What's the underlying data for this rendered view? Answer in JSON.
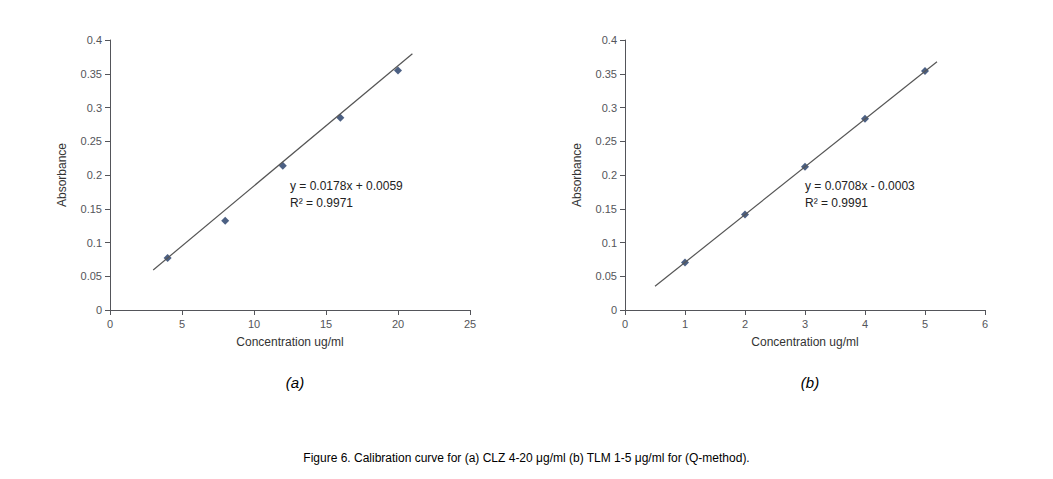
{
  "chart_data": [
    {
      "type": "scatter",
      "title": "(a)",
      "xlabel": "Concentration ug/ml",
      "ylabel": "Absorbance",
      "annotations": [
        "y = 0.0178x + 0.0059",
        "R² = 0.9971"
      ],
      "xlim": [
        0,
        25
      ],
      "xticks": [
        0,
        5,
        10,
        15,
        20,
        25
      ],
      "ylim": [
        0,
        0.4
      ],
      "yticks": [
        0,
        0.05,
        0.1,
        0.15,
        0.2,
        0.25,
        0.3,
        0.35,
        0.4
      ],
      "grid": false,
      "series": [
        {
          "type": "line",
          "color": "#555555",
          "x": [
            3,
            21
          ],
          "values": [
            0.0593,
            0.3797
          ]
        },
        {
          "type": "scatter",
          "color": "#1F3864",
          "marker": "diamond",
          "x": [
            4,
            8,
            12,
            16,
            20
          ],
          "values": [
            0.0771,
            0.1324,
            0.2137,
            0.2849,
            0.3549
          ]
        }
      ]
    },
    {
      "type": "scatter",
      "title": "(b)",
      "xlabel": "Concentration ug/ml",
      "ylabel": "Absorbance",
      "annotations": [
        "y = 0.0708x - 0.0003",
        "R² = 0.9991"
      ],
      "xlim": [
        0,
        6
      ],
      "xticks": [
        0,
        1,
        2,
        3,
        4,
        5,
        6
      ],
      "ylim": [
        0,
        0.4
      ],
      "yticks": [
        0,
        0.05,
        0.1,
        0.15,
        0.2,
        0.25,
        0.3,
        0.35,
        0.4
      ],
      "grid": false,
      "series": [
        {
          "type": "line",
          "color": "#555555",
          "x": [
            0.5,
            5.2
          ],
          "values": [
            0.0351,
            0.36786
          ]
        },
        {
          "type": "scatter",
          "color": "#1F3864",
          "marker": "diamond",
          "x": [
            1,
            2,
            3,
            4,
            5
          ],
          "values": [
            0.0705,
            0.1413,
            0.2124,
            0.2832,
            0.354
          ]
        }
      ]
    }
  ],
  "caption": "Figure 6. Calibration curve for (a) CLZ 4-20 μg/ml (b) TLM 1-5 μg/ml for (Q-method)."
}
